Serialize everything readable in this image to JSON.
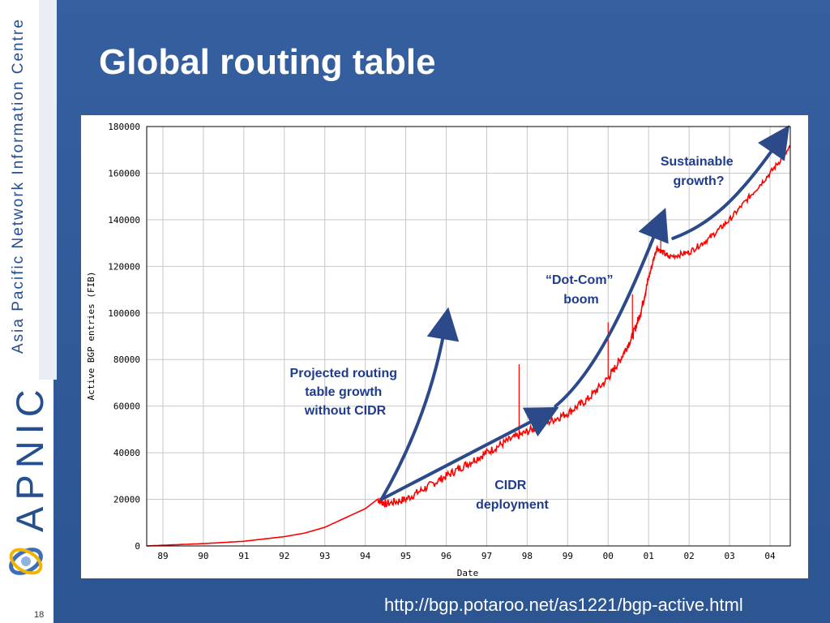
{
  "slide": {
    "title": "Global routing table",
    "sidebar_text": "Asia Pacific Network Information Centre",
    "brand": "APNIC",
    "slide_number": "18",
    "source_url": "http://bgp.potaroo.net/as1221/bgp-active.html",
    "colors": {
      "background": "#2f5a9a",
      "annotation": "#1f3c8c",
      "series": "#ff0000",
      "arrow": "#2c4a8a"
    }
  },
  "chart_data": {
    "type": "line",
    "title": "",
    "xlabel": "Date",
    "ylabel": "Active BGP entries (FIB)",
    "xlim": [
      1988.6,
      2004.5
    ],
    "ylim": [
      0,
      180000
    ],
    "x_ticks": [
      "89",
      "90",
      "91",
      "92",
      "93",
      "94",
      "95",
      "96",
      "97",
      "98",
      "99",
      "00",
      "01",
      "02",
      "03",
      "04"
    ],
    "y_ticks": [
      "0",
      "20000",
      "40000",
      "60000",
      "80000",
      "100000",
      "120000",
      "140000",
      "160000",
      "180000"
    ],
    "grid": true,
    "series": [
      {
        "color": "#ff0000",
        "points": [
          [
            1988.6,
            0
          ],
          [
            1989.0,
            300
          ],
          [
            1990.0,
            1000
          ],
          [
            1991.0,
            2000
          ],
          [
            1992.0,
            4000
          ],
          [
            1992.5,
            5500
          ],
          [
            1993.0,
            8000
          ],
          [
            1993.5,
            12000
          ],
          [
            1994.0,
            16000
          ],
          [
            1994.3,
            20000
          ],
          [
            1994.5,
            18000
          ],
          [
            1995.0,
            20000
          ],
          [
            1995.5,
            25000
          ],
          [
            1996.0,
            30000
          ],
          [
            1996.5,
            35000
          ],
          [
            1997.0,
            40000
          ],
          [
            1997.5,
            45000
          ],
          [
            1998.0,
            49000
          ],
          [
            1998.5,
            53000
          ],
          [
            1999.0,
            57000
          ],
          [
            1999.5,
            63000
          ],
          [
            2000.0,
            72000
          ],
          [
            2000.3,
            80000
          ],
          [
            2000.6,
            90000
          ],
          [
            2000.8,
            100000
          ],
          [
            2001.0,
            115000
          ],
          [
            2001.2,
            128000
          ],
          [
            2001.5,
            124000
          ],
          [
            2002.0,
            126000
          ],
          [
            2002.5,
            132000
          ],
          [
            2003.0,
            140000
          ],
          [
            2003.5,
            150000
          ],
          [
            2004.0,
            160000
          ],
          [
            2004.5,
            171000
          ]
        ],
        "spikes": [
          {
            "x": 1997.8,
            "y": 78000
          },
          {
            "x": 2000.0,
            "y": 96000
          },
          {
            "x": 2000.6,
            "y": 108000
          },
          {
            "x": 2001.3,
            "y": 132000
          }
        ]
      }
    ],
    "annotations": [
      {
        "lines": [
          "Sustainable",
          "growth?"
        ]
      },
      {
        "lines": [
          "“Dot-Com”",
          "boom"
        ]
      },
      {
        "lines": [
          "Projected routing",
          "table growth",
          "without CIDR"
        ]
      },
      {
        "lines": [
          "CIDR",
          "deployment"
        ]
      }
    ],
    "arrows": [
      {
        "name": "projected-growth-arrow",
        "points": [
          [
            1994.4,
            20000
          ],
          [
            1995.6,
            56000
          ],
          [
            1996.0,
            97000
          ]
        ]
      },
      {
        "name": "cidr-deployment-arrow",
        "points": [
          [
            1994.4,
            20000
          ],
          [
            1998.5,
            57000
          ]
        ]
      },
      {
        "name": "dot-com-boom-arrow",
        "points": [
          [
            1998.7,
            60000
          ],
          [
            1999.8,
            76000
          ],
          [
            2000.6,
            110000
          ],
          [
            2001.3,
            140000
          ]
        ]
      },
      {
        "name": "sustainable-growth-arrow",
        "points": [
          [
            2001.6,
            132000
          ],
          [
            2002.5,
            138000
          ],
          [
            2003.2,
            148000
          ],
          [
            2004.3,
            176000
          ]
        ]
      }
    ]
  }
}
